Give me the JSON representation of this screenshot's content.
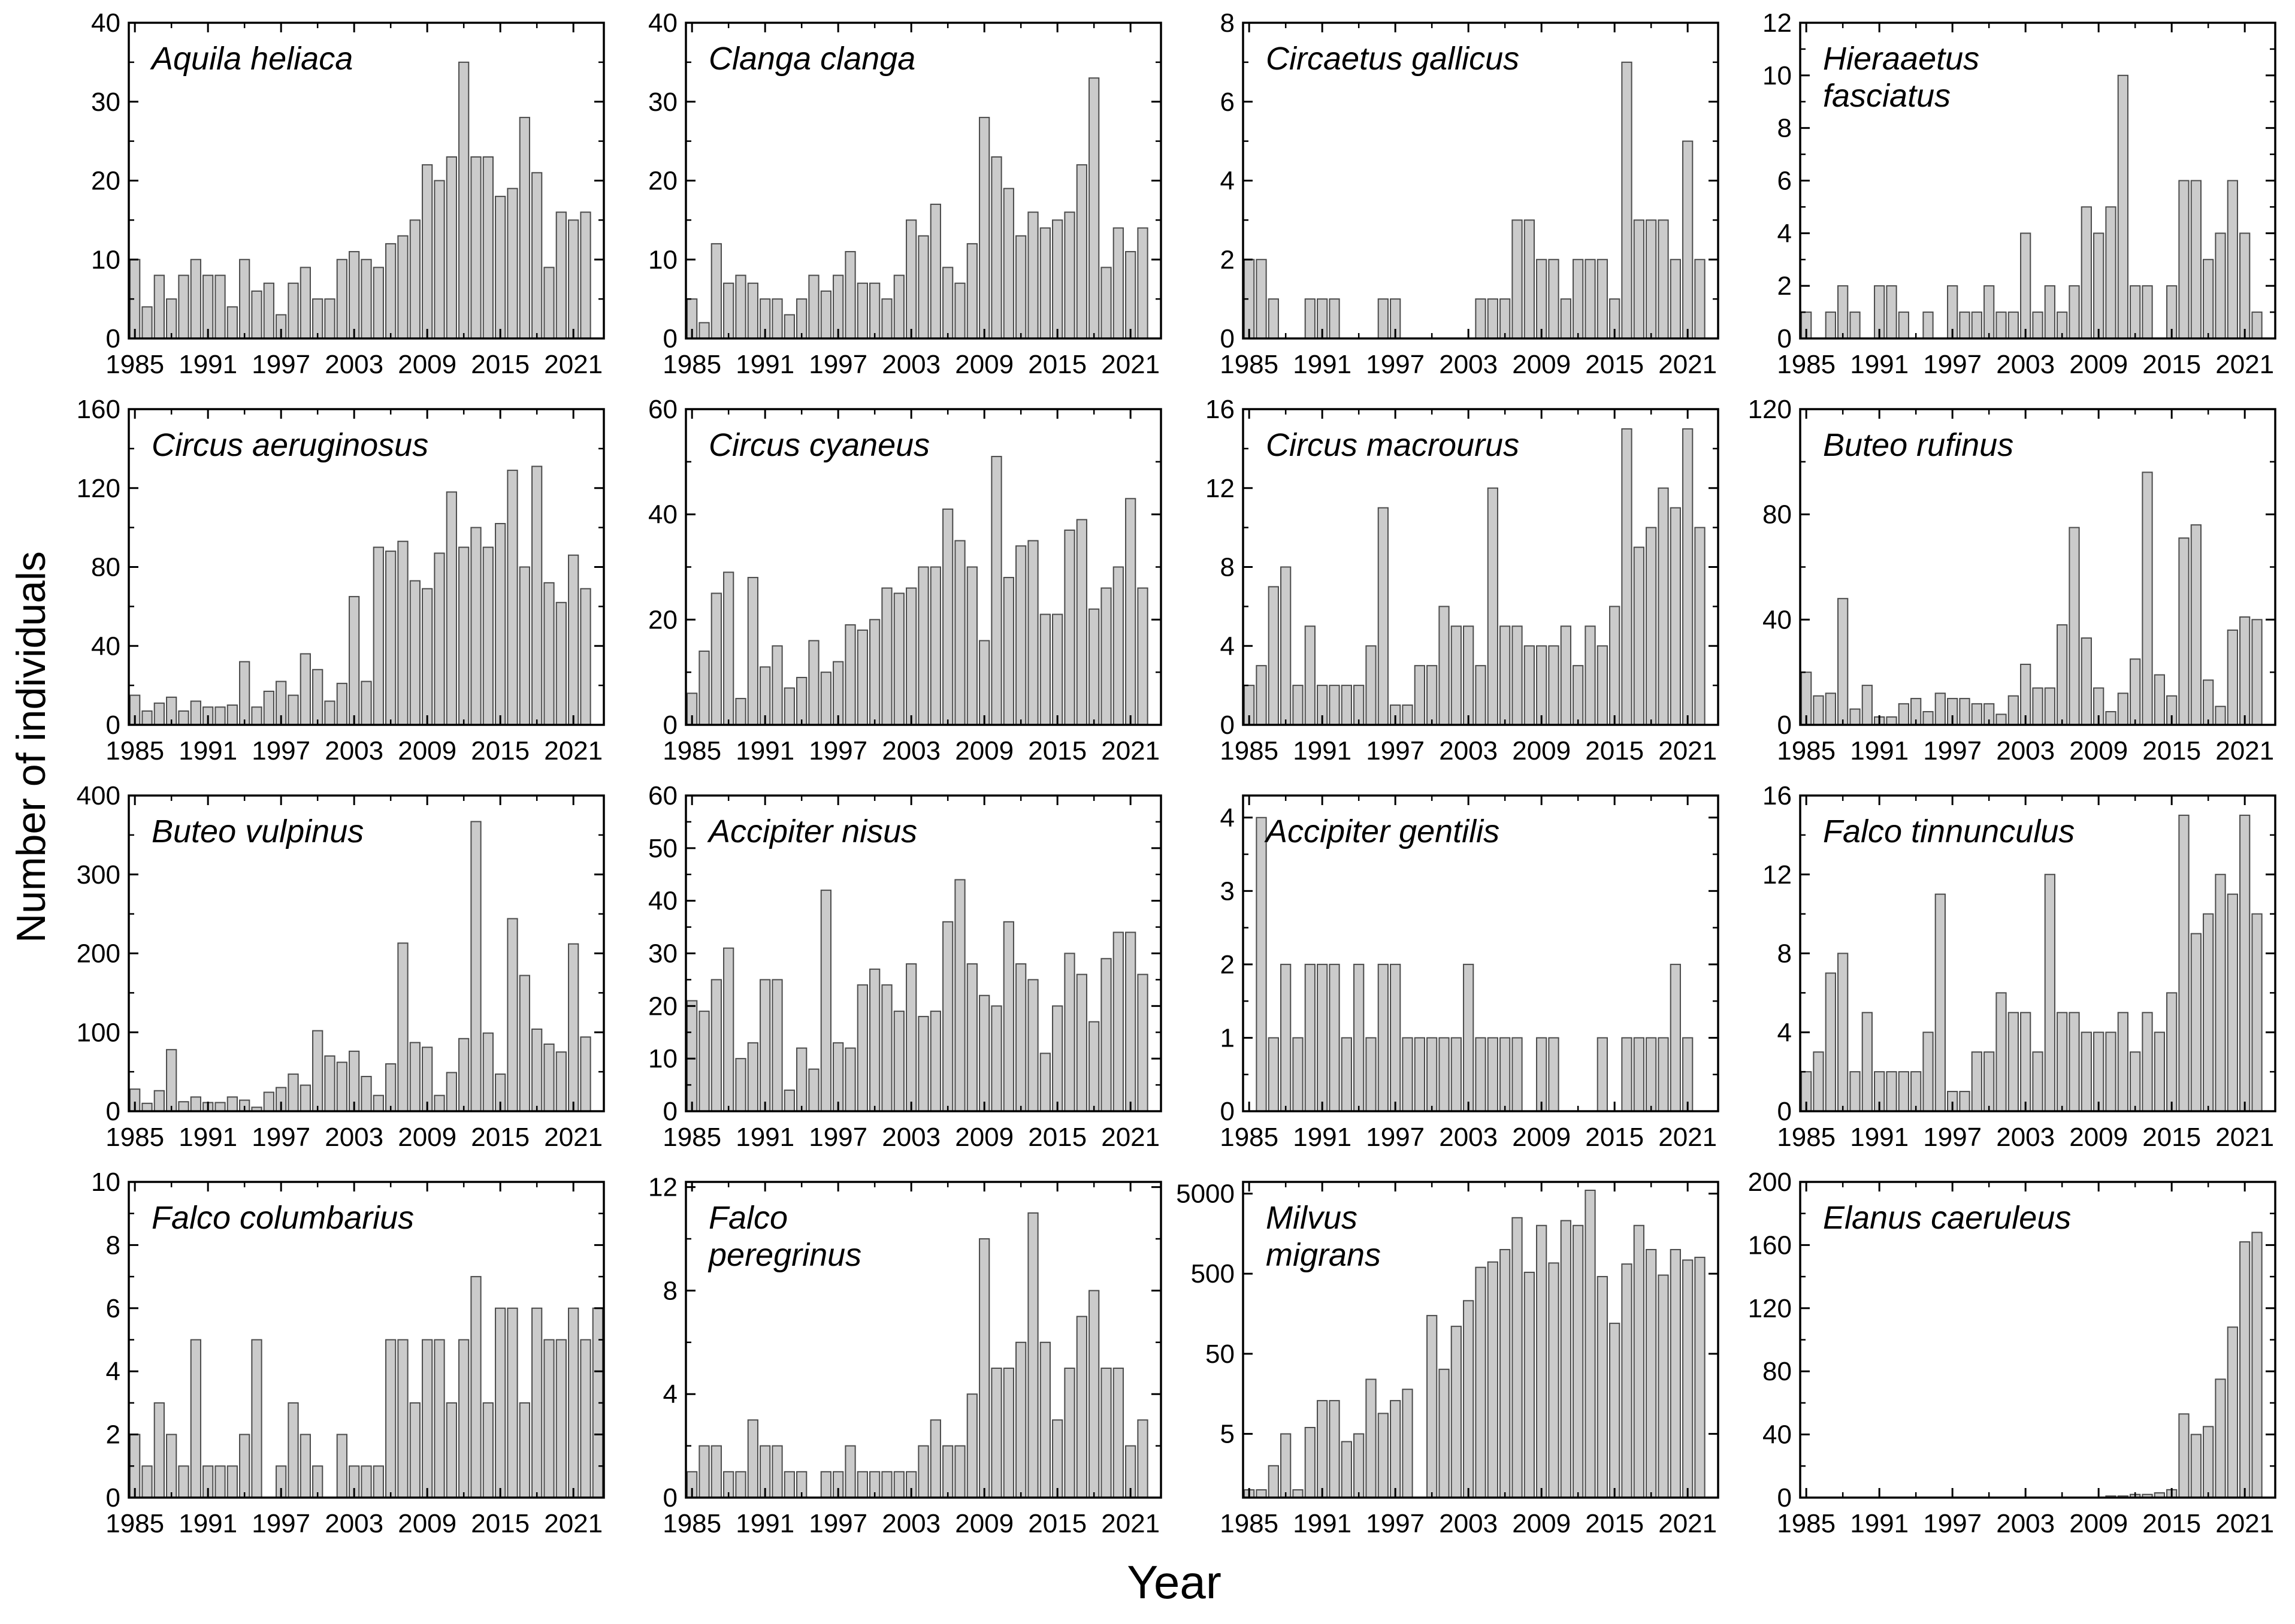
{
  "figure": {
    "y_axis_label": "Number of individuals",
    "x_axis_label": "Year",
    "bar_fill": "#cbcbcb",
    "bar_stroke": "#4c4c4c",
    "axis_color": "#000000"
  },
  "chart_data": {
    "type": "bar",
    "layout": "4x4 grid of single-series bar charts, shared x axis",
    "years": [
      1985,
      1986,
      1987,
      1988,
      1989,
      1990,
      1991,
      1992,
      1993,
      1994,
      1995,
      1996,
      1997,
      1998,
      1999,
      2000,
      2001,
      2002,
      2003,
      2004,
      2005,
      2006,
      2007,
      2008,
      2009,
      2010,
      2011,
      2012,
      2013,
      2014,
      2015,
      2016,
      2017,
      2018,
      2019,
      2020,
      2021,
      2022,
      2023
    ],
    "x_tick_labels": [
      1985,
      1991,
      1997,
      2003,
      2009,
      2015,
      2021
    ],
    "panels": [
      {
        "title_lines": [
          "Aquila heliaca"
        ],
        "scale": "linear",
        "ymax": 40,
        "yticks": [
          0,
          10,
          20,
          30,
          40
        ],
        "values": [
          10,
          4,
          8,
          5,
          8,
          10,
          8,
          8,
          4,
          10,
          6,
          7,
          3,
          7,
          9,
          5,
          5,
          10,
          11,
          10,
          9,
          12,
          13,
          15,
          22,
          20,
          23,
          35,
          23,
          23,
          18,
          19,
          28,
          21,
          9,
          16,
          15,
          16,
          0
        ]
      },
      {
        "title_lines": [
          "Clanga clanga"
        ],
        "scale": "linear",
        "ymax": 40,
        "yticks": [
          0,
          10,
          20,
          30,
          40
        ],
        "values": [
          5,
          2,
          12,
          7,
          8,
          7,
          5,
          5,
          3,
          5,
          8,
          6,
          8,
          11,
          7,
          7,
          5,
          8,
          15,
          13,
          17,
          9,
          7,
          12,
          28,
          23,
          19,
          13,
          16,
          14,
          15,
          16,
          22,
          33,
          9,
          14,
          11,
          14,
          0
        ]
      },
      {
        "title_lines": [
          "Circaetus gallicus"
        ],
        "scale": "linear",
        "ymax": 8,
        "yticks": [
          0,
          2,
          4,
          6,
          8
        ],
        "values": [
          2,
          2,
          1,
          0,
          0,
          1,
          1,
          1,
          0,
          0,
          0,
          1,
          1,
          0,
          0,
          0,
          0,
          0,
          0,
          1,
          1,
          1,
          3,
          3,
          2,
          2,
          1,
          2,
          2,
          2,
          1,
          7,
          3,
          3,
          3,
          2,
          5,
          2,
          0
        ]
      },
      {
        "title_lines": [
          "Hieraaetus",
          "fasciatus"
        ],
        "scale": "linear",
        "ymax": 12,
        "yticks": [
          0,
          2,
          4,
          6,
          8,
          10,
          12
        ],
        "values": [
          1,
          0,
          1,
          2,
          1,
          0,
          2,
          2,
          1,
          0,
          1,
          0,
          2,
          1,
          1,
          2,
          1,
          1,
          4,
          1,
          2,
          1,
          2,
          5,
          4,
          5,
          10,
          2,
          2,
          0,
          2,
          6,
          6,
          3,
          4,
          6,
          4,
          1,
          0
        ]
      },
      {
        "title_lines": [
          "Circus aeruginosus"
        ],
        "scale": "linear",
        "ymax": 160,
        "yticks": [
          0,
          40,
          80,
          120,
          160
        ],
        "values": [
          15,
          7,
          11,
          14,
          7,
          12,
          9,
          9,
          10,
          32,
          9,
          17,
          22,
          15,
          36,
          28,
          12,
          21,
          65,
          22,
          90,
          88,
          93,
          73,
          69,
          87,
          118,
          90,
          100,
          90,
          102,
          129,
          80,
          131,
          72,
          62,
          86,
          69,
          0
        ]
      },
      {
        "title_lines": [
          "Circus cyaneus"
        ],
        "scale": "linear",
        "ymax": 60,
        "yticks": [
          0,
          20,
          40,
          60
        ],
        "values": [
          6,
          14,
          25,
          29,
          5,
          28,
          11,
          15,
          7,
          9,
          16,
          10,
          12,
          19,
          18,
          20,
          26,
          25,
          26,
          30,
          30,
          41,
          35,
          30,
          16,
          51,
          28,
          34,
          35,
          21,
          21,
          37,
          39,
          22,
          26,
          30,
          43,
          26,
          0
        ]
      },
      {
        "title_lines": [
          "Circus macrourus"
        ],
        "scale": "linear",
        "ymax": 16,
        "yticks": [
          0,
          4,
          8,
          12,
          16
        ],
        "values": [
          2,
          3,
          7,
          8,
          2,
          5,
          2,
          2,
          2,
          2,
          4,
          11,
          1,
          1,
          3,
          3,
          6,
          5,
          5,
          3,
          12,
          5,
          5,
          4,
          4,
          4,
          5,
          3,
          5,
          4,
          6,
          15,
          9,
          10,
          12,
          11,
          15,
          10,
          0
        ]
      },
      {
        "title_lines": [
          "Buteo rufinus"
        ],
        "scale": "linear",
        "ymax": 120,
        "yticks": [
          0,
          40,
          80,
          120
        ],
        "values": [
          20,
          11,
          12,
          48,
          6,
          15,
          3,
          3,
          8,
          10,
          5,
          12,
          10,
          10,
          8,
          8,
          4,
          11,
          23,
          14,
          14,
          38,
          75,
          33,
          14,
          5,
          12,
          25,
          96,
          19,
          11,
          71,
          76,
          17,
          7,
          36,
          41,
          40,
          0
        ]
      },
      {
        "title_lines": [
          "Buteo vulpinus"
        ],
        "scale": "linear",
        "ymax": 400,
        "yticks": [
          0,
          100,
          200,
          300,
          400
        ],
        "values": [
          28,
          10,
          26,
          78,
          12,
          18,
          11,
          11,
          18,
          14,
          5,
          24,
          30,
          47,
          33,
          102,
          70,
          62,
          76,
          44,
          20,
          60,
          213,
          87,
          81,
          20,
          49,
          92,
          367,
          99,
          47,
          244,
          172,
          104,
          85,
          75,
          212,
          94,
          0
        ]
      },
      {
        "title_lines": [
          "Accipiter nisus"
        ],
        "scale": "linear",
        "ymax": 60,
        "yticks": [
          0,
          10,
          20,
          30,
          40,
          50,
          60
        ],
        "values": [
          21,
          19,
          25,
          31,
          10,
          13,
          25,
          25,
          4,
          12,
          8,
          42,
          13,
          12,
          24,
          27,
          24,
          19,
          28,
          18,
          19,
          36,
          44,
          28,
          22,
          20,
          36,
          28,
          25,
          11,
          20,
          30,
          26,
          17,
          29,
          34,
          34,
          26,
          0
        ]
      },
      {
        "title_lines": [
          "Accipiter gentilis"
        ],
        "scale": "linear",
        "ymax": 4.3,
        "yticks": [
          0,
          1,
          2,
          3,
          4
        ],
        "values": [
          0,
          4,
          1,
          2,
          1,
          2,
          2,
          2,
          1,
          2,
          1,
          2,
          2,
          1,
          1,
          1,
          1,
          1,
          2,
          1,
          1,
          1,
          1,
          0,
          1,
          1,
          0,
          0,
          0,
          1,
          0,
          1,
          1,
          1,
          1,
          2,
          1,
          0,
          0
        ]
      },
      {
        "title_lines": [
          "Falco tinnunculus"
        ],
        "scale": "linear",
        "ymax": 16,
        "yticks": [
          0,
          4,
          8,
          12,
          16
        ],
        "values": [
          2,
          3,
          7,
          8,
          2,
          5,
          2,
          2,
          2,
          2,
          4,
          11,
          1,
          1,
          3,
          3,
          6,
          5,
          5,
          3,
          12,
          5,
          5,
          4,
          4,
          4,
          5,
          3,
          5,
          4,
          6,
          15,
          9,
          10,
          12,
          11,
          15,
          10,
          0
        ]
      },
      {
        "title_lines": [
          "Falco columbarius"
        ],
        "scale": "linear",
        "ymax": 10,
        "yticks": [
          0,
          2,
          4,
          6,
          8,
          10
        ],
        "values": [
          2,
          1,
          3,
          2,
          1,
          5,
          1,
          1,
          1,
          2,
          5,
          0,
          1,
          3,
          2,
          1,
          0,
          2,
          1,
          1,
          1,
          5,
          5,
          3,
          5,
          5,
          3,
          5,
          7,
          3,
          6,
          6,
          3,
          6,
          5,
          5,
          6,
          5,
          6
        ]
      },
      {
        "title_lines": [
          "Falco",
          "peregrinus"
        ],
        "scale": "linear",
        "ymax": 12.2,
        "yticks": [
          0,
          4,
          8,
          12
        ],
        "values": [
          1,
          2,
          2,
          1,
          1,
          3,
          2,
          2,
          1,
          1,
          0,
          1,
          1,
          2,
          1,
          1,
          1,
          1,
          1,
          2,
          3,
          2,
          2,
          4,
          10,
          5,
          5,
          6,
          11,
          6,
          3,
          5,
          7,
          8,
          5,
          5,
          2,
          3,
          0
        ]
      },
      {
        "title_lines": [
          "Milvus",
          "migrans"
        ],
        "scale": "log",
        "ymax": 7000,
        "ymin": 0.8,
        "yticks": [
          5,
          50,
          500,
          5000
        ],
        "values": [
          1,
          1,
          2,
          5,
          1,
          6,
          13,
          13,
          4,
          5,
          24,
          9,
          13,
          18,
          0,
          150,
          32,
          110,
          230,
          600,
          700,
          1000,
          2500,
          520,
          2000,
          680,
          2300,
          2000,
          5500,
          460,
          120,
          660,
          2000,
          1000,
          480,
          1000,
          740,
          800,
          0
        ]
      },
      {
        "title_lines": [
          "Elanus caeruleus"
        ],
        "scale": "linear",
        "ymax": 200,
        "yticks": [
          0,
          40,
          80,
          120,
          160,
          200
        ],
        "values": [
          0,
          0,
          0,
          0,
          0,
          0,
          0,
          0,
          0,
          0,
          0,
          0,
          0,
          0,
          0,
          0,
          0,
          0,
          0,
          0,
          0,
          0,
          0,
          0,
          0,
          1,
          1,
          2,
          2,
          3,
          5,
          53,
          40,
          45,
          75,
          108,
          162,
          168,
          0
        ]
      }
    ]
  }
}
